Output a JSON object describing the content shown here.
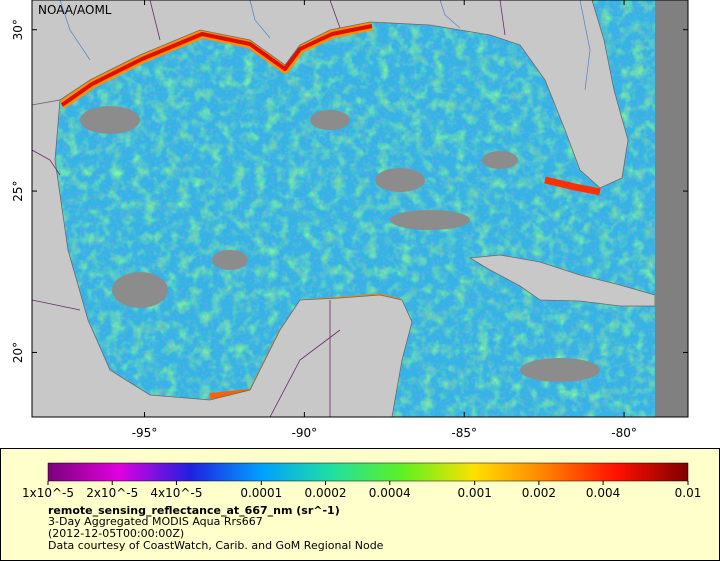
{
  "map": {
    "label": "NOAA/AOML",
    "xlim": [
      -98.52,
      -78.0
    ],
    "ylim": [
      18.0,
      30.92
    ],
    "xticks": [
      {
        "value": -95,
        "label": "-95°"
      },
      {
        "value": -90,
        "label": "-90°"
      },
      {
        "value": -85,
        "label": "-85°"
      },
      {
        "value": -80,
        "label": "-80°"
      }
    ],
    "yticks": [
      {
        "value": 20,
        "label": "20°"
      },
      {
        "value": 25,
        "label": "25°"
      },
      {
        "value": 30,
        "label": "30°"
      }
    ]
  },
  "colorbar": {
    "scale": "log",
    "lim": [
      1e-05,
      0.01
    ],
    "colors": [
      "#7a007a",
      "#e000e0",
      "#2020e0",
      "#00a0ff",
      "#20e0a0",
      "#60f020",
      "#ffe000",
      "#ff8000",
      "#ff1000",
      "#800000"
    ],
    "ticks": [
      {
        "value": 1e-05,
        "label": "1x10^-5"
      },
      {
        "value": 2e-05,
        "label": "2x10^-5"
      },
      {
        "value": 4e-05,
        "label": "4x10^-5"
      },
      0.0001,
      0.0002,
      0.0004,
      0.001,
      0.002,
      0.004,
      0.01
    ]
  },
  "legend": {
    "variable": "remote_sensing_reflectance_at_667_nm (sr^-1)",
    "dataset": "3-Day Aggregated MODIS Aqua Rrs667",
    "time": "(2012-12-05T00:00:00Z)",
    "credit": "Data courtesy of CoastWatch, Carib. and GoM Regional Node"
  }
}
